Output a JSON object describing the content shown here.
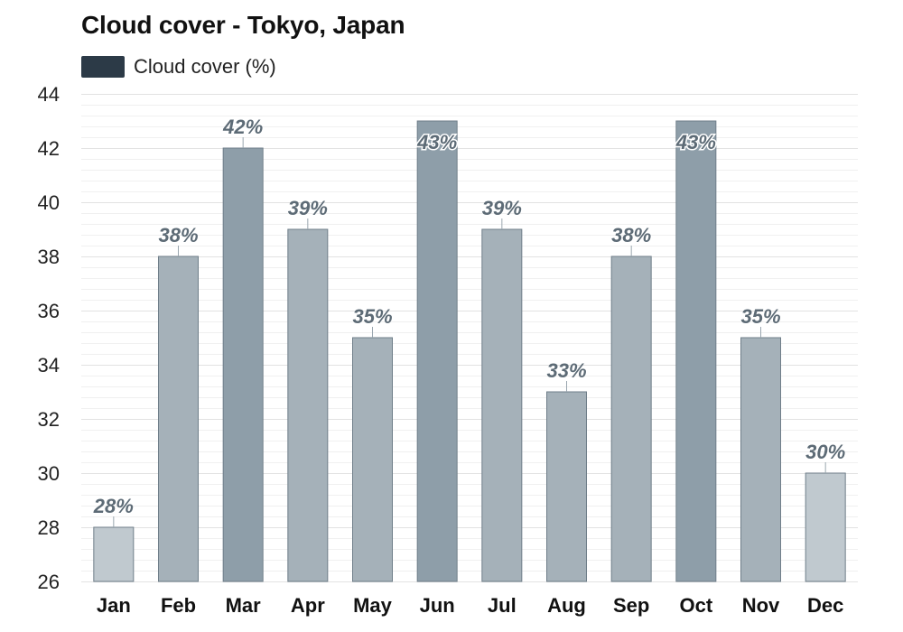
{
  "chart_data": {
    "type": "bar",
    "title": "Cloud cover - Tokyo, Japan",
    "legend": {
      "label": "Cloud cover (%)",
      "color": "#2c3a47",
      "placement": "top-left"
    },
    "categories": [
      "Jan",
      "Feb",
      "Mar",
      "Apr",
      "May",
      "Jun",
      "Jul",
      "Aug",
      "Sep",
      "Oct",
      "Nov",
      "Dec"
    ],
    "values": [
      28,
      38,
      42,
      39,
      35,
      43,
      39,
      33,
      38,
      43,
      35,
      30
    ],
    "data_labels": [
      "28%",
      "38%",
      "42%",
      "39%",
      "35%",
      "43%",
      "39%",
      "33%",
      "38%",
      "43%",
      "35%",
      "30%"
    ],
    "ylim": [
      26,
      44
    ],
    "yticks": [
      26,
      28,
      30,
      32,
      34,
      36,
      38,
      40,
      42,
      44
    ],
    "grid": true,
    "colors": {
      "bar_light": "#c0c9cf",
      "bar_mid": "#a5b1b9",
      "bar_dark": "#8e9ea9",
      "bar_stroke": "#6f7e89",
      "grid": "#e2e2e2",
      "label": "#5d6b76"
    }
  }
}
